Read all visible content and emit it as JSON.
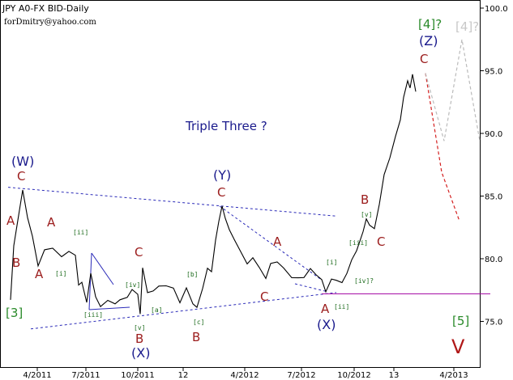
{
  "header": {
    "title": "JPY A0-FX BID-Daily",
    "credit": "forDmitry@yahoo.com"
  },
  "chart_data": {
    "type": "line",
    "series_kind": "OHLC daily bars (approximated as close line)",
    "ylim": [
      72,
      100.5
    ],
    "yticks": [
      75.0,
      80.0,
      85.0,
      90.0,
      95.0,
      100.0
    ],
    "ytick_labels": [
      "75.0",
      "80.0",
      "85.0",
      "90.0",
      "95.0",
      "100.0"
    ],
    "xticks": [
      "4/2011",
      "7/2011",
      "10/2011",
      "12",
      "4/2012",
      "7/2012",
      "10/2012",
      "13",
      "4/2013"
    ],
    "grid": false,
    "price_keypoints": [
      {
        "x": 13,
        "y": 76.6
      },
      {
        "x": 17,
        "y": 81.0
      },
      {
        "x": 20,
        "y": 82.3
      },
      {
        "x": 28,
        "y": 85.6
      },
      {
        "x": 34,
        "y": 83.2
      },
      {
        "x": 40,
        "y": 81.8
      },
      {
        "x": 47,
        "y": 79.5
      },
      {
        "x": 55,
        "y": 80.6
      },
      {
        "x": 65,
        "y": 80.8
      },
      {
        "x": 76,
        "y": 80.2
      },
      {
        "x": 85,
        "y": 80.7
      },
      {
        "x": 93,
        "y": 80.2
      },
      {
        "x": 97,
        "y": 77.9
      },
      {
        "x": 101,
        "y": 78.2
      },
      {
        "x": 107,
        "y": 76.4
      },
      {
        "x": 112,
        "y": 78.8
      },
      {
        "x": 118,
        "y": 77.0
      },
      {
        "x": 124,
        "y": 76.3
      },
      {
        "x": 133,
        "y": 76.6
      },
      {
        "x": 142,
        "y": 76.4
      },
      {
        "x": 148,
        "y": 76.8
      },
      {
        "x": 157,
        "y": 76.8
      },
      {
        "x": 163,
        "y": 77.5
      },
      {
        "x": 170,
        "y": 77.2
      },
      {
        "x": 173,
        "y": 75.7
      },
      {
        "x": 176,
        "y": 79.2
      },
      {
        "x": 182,
        "y": 77.3
      },
      {
        "x": 189,
        "y": 77.5
      },
      {
        "x": 196,
        "y": 77.7
      },
      {
        "x": 205,
        "y": 77.8
      },
      {
        "x": 214,
        "y": 77.7
      },
      {
        "x": 222,
        "y": 76.6
      },
      {
        "x": 230,
        "y": 77.6
      },
      {
        "x": 238,
        "y": 76.4
      },
      {
        "x": 243,
        "y": 76.2
      },
      {
        "x": 250,
        "y": 77.5
      },
      {
        "x": 256,
        "y": 79.2
      },
      {
        "x": 261,
        "y": 79.0
      },
      {
        "x": 266,
        "y": 81.6
      },
      {
        "x": 270,
        "y": 82.9
      },
      {
        "x": 274,
        "y": 84.2
      },
      {
        "x": 278,
        "y": 83.3
      },
      {
        "x": 283,
        "y": 82.2
      },
      {
        "x": 289,
        "y": 81.5
      },
      {
        "x": 297,
        "y": 80.6
      },
      {
        "x": 305,
        "y": 79.7
      },
      {
        "x": 312,
        "y": 80.0
      },
      {
        "x": 320,
        "y": 79.3
      },
      {
        "x": 328,
        "y": 78.5
      },
      {
        "x": 334,
        "y": 79.5
      },
      {
        "x": 342,
        "y": 79.7
      },
      {
        "x": 350,
        "y": 79.3
      },
      {
        "x": 360,
        "y": 78.6
      },
      {
        "x": 368,
        "y": 78.4
      },
      {
        "x": 375,
        "y": 78.5
      },
      {
        "x": 383,
        "y": 79.3
      },
      {
        "x": 390,
        "y": 78.6
      },
      {
        "x": 397,
        "y": 78.3
      },
      {
        "x": 402,
        "y": 77.4
      },
      {
        "x": 409,
        "y": 78.5
      },
      {
        "x": 415,
        "y": 78.2
      },
      {
        "x": 422,
        "y": 78.1
      },
      {
        "x": 428,
        "y": 78.9
      },
      {
        "x": 434,
        "y": 79.8
      },
      {
        "x": 440,
        "y": 80.6
      },
      {
        "x": 448,
        "y": 82.2
      },
      {
        "x": 452,
        "y": 83.3
      },
      {
        "x": 456,
        "y": 82.6
      },
      {
        "x": 462,
        "y": 82.4
      },
      {
        "x": 468,
        "y": 84.4
      },
      {
        "x": 474,
        "y": 86.6
      },
      {
        "x": 481,
        "y": 88.0
      },
      {
        "x": 488,
        "y": 89.8
      },
      {
        "x": 494,
        "y": 91.2
      },
      {
        "x": 498,
        "y": 92.8
      },
      {
        "x": 503,
        "y": 94.2
      },
      {
        "x": 506,
        "y": 93.7
      },
      {
        "x": 509,
        "y": 94.6
      },
      {
        "x": 513,
        "y": 93.3
      }
    ],
    "projections": [
      {
        "name": "red-projection",
        "color": "#d42020",
        "points": [
          {
            "x": 525,
            "y": 94.8
          },
          {
            "x": 545,
            "y": 86.9
          },
          {
            "x": 567,
            "y": 83.0
          }
        ]
      },
      {
        "name": "gray-projection",
        "color": "#bbbbbb",
        "points": [
          {
            "x": 525,
            "y": 94.8
          },
          {
            "x": 548,
            "y": 89.4
          },
          {
            "x": 570,
            "y": 97.5
          },
          {
            "x": 592,
            "y": 89.4
          }
        ]
      }
    ],
    "trendlines": [
      {
        "name": "upper-channel",
        "x1": 10,
        "y1": 85.7,
        "x2": 415,
        "y2": 83.4
      },
      {
        "name": "lower-channel",
        "x1": 38,
        "y1": 74.4,
        "x2": 415,
        "y2": 77.3
      },
      {
        "name": "upper-triangle",
        "x1": 271,
        "y1": 84.2,
        "x2": 397,
        "y2": 78.3
      },
      {
        "name": "lower-triangle",
        "x1": 364,
        "y1": 78.0,
        "x2": 402,
        "y2": 77.4
      }
    ],
    "support_line": {
      "color": "#a000a0",
      "y": 77.2,
      "x1": 397,
      "x2": 605
    },
    "annotations": {
      "red": [
        "C",
        "A",
        "B",
        "A",
        "A",
        "C",
        "B",
        "B",
        "C",
        "A",
        "C",
        "A",
        "B",
        "C"
      ],
      "blue": [
        "(W)",
        "(X)",
        "(Y)",
        "(X)",
        "(Z)"
      ],
      "green_big": [
        "[3]",
        "[4]?",
        "[4]?",
        "[5]"
      ],
      "green_small": [
        "[i]",
        "[ii]",
        "[iii]",
        "[iv]",
        "[v]",
        "[a]",
        "[b]",
        "[c]",
        "[i]",
        "[ii]",
        "[iii]",
        "[iv]?",
        "[v]"
      ],
      "note": "Triple Three ?",
      "big_v": "V"
    }
  }
}
